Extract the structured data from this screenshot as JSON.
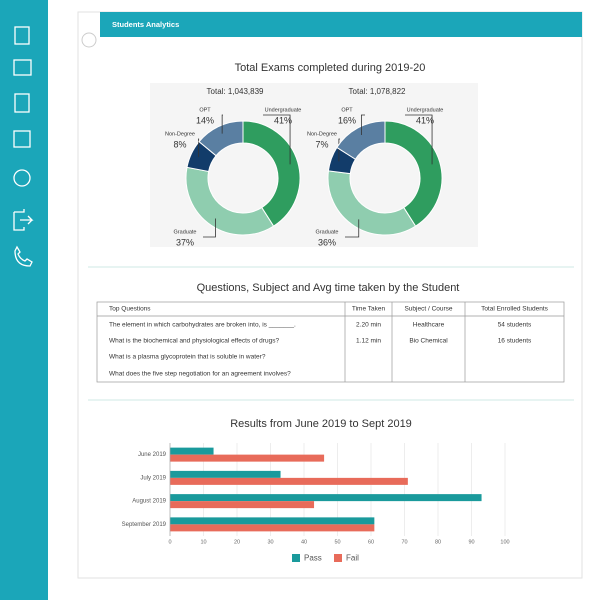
{
  "header": {
    "title": "Students Analytics"
  },
  "donut_section": {
    "title": "Total Exams completed during 2019-20"
  },
  "table": {
    "title": "Questions, Subject and Avg time taken by the Student",
    "columns": [
      "Top Questions",
      "Time Taken",
      "Subject / Course",
      "Total Enrolled Students"
    ],
    "rows": [
      {
        "question": "The element in which carbohydrates are broken into, is _______.",
        "time": "2.20 min",
        "subject": "Healthcare",
        "enrolled": "54 students"
      },
      {
        "question": "What is the biochemical and physiological effects of drugs?",
        "time": "1.12 min",
        "subject": "Bio Chemical",
        "enrolled": "16 students"
      },
      {
        "question": "What is a plasma glycoprotein that is soluble in water?"
      },
      {
        "question": "What does the five step negotiation for an agreement involves?"
      }
    ]
  },
  "chart_data": [
    {
      "type": "donut",
      "subtitle": "Total: 1,043,839",
      "categories": [
        "Undergraduate",
        "Graduate",
        "Non-Degree",
        "OPT"
      ],
      "values": [
        41,
        37,
        8,
        14
      ],
      "value_labels": [
        "41%",
        "37%",
        "8%",
        "14%"
      ],
      "colors": [
        "#2f9d5f",
        "#8fcdaf",
        "#123c6a",
        "#5a7fa2"
      ]
    },
    {
      "type": "donut",
      "subtitle": "Total: 1,078,822",
      "categories": [
        "Undergraduate",
        "Graduate",
        "Non-Degree",
        "OPT"
      ],
      "values": [
        41,
        36,
        7,
        16
      ],
      "value_labels": [
        "41%",
        "36%",
        "7%",
        "16%"
      ],
      "colors": [
        "#2f9d5f",
        "#8fcdaf",
        "#123c6a",
        "#5a7fa2"
      ]
    },
    {
      "type": "bar",
      "orientation": "horizontal",
      "title": "Results from June 2019 to Sept 2019",
      "categories": [
        "June 2019",
        "July 2019",
        "August 2019",
        "September 2019"
      ],
      "series": [
        {
          "name": "Pass",
          "color": "#1a9a9c",
          "values": [
            13,
            33,
            93,
            61
          ]
        },
        {
          "name": "Fail",
          "color": "#e86b5a",
          "values": [
            46,
            71,
            43,
            61
          ]
        }
      ],
      "xlim": [
        0,
        100
      ],
      "xticks": [
        0,
        10,
        20,
        30,
        40,
        50,
        60,
        70,
        80,
        90,
        100
      ],
      "grid": true
    }
  ]
}
